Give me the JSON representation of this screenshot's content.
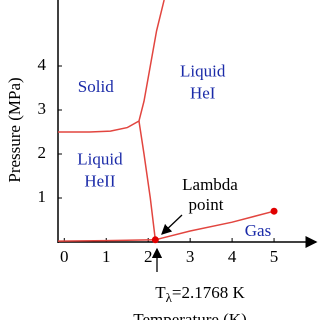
{
  "chart_data": {
    "type": "line",
    "x_label": "Temperature (K)",
    "y_label": "Pressure (MPa)",
    "xlim": [
      -0.15,
      6
    ],
    "ylim": [
      0,
      5.5
    ],
    "xticks": [
      0,
      1,
      2,
      3,
      4,
      5
    ],
    "yticks": [
      1,
      2,
      3,
      4
    ],
    "series": [
      {
        "color": "#e2453f",
        "x": [
          -0.15,
          0.6,
          1.1,
          1.5,
          1.78,
          1.9,
          2.05,
          2.2,
          2.38
        ],
        "values": [
          2.5,
          2.5,
          2.52,
          2.6,
          2.75,
          3.2,
          4.0,
          4.8,
          5.5
        ]
      },
      {
        "color": "#e2453f",
        "x": [
          1.78,
          1.9,
          2.05,
          2.17
        ],
        "values": [
          2.75,
          2.0,
          1.0,
          0.05
        ]
      },
      {
        "color": "#e2453f",
        "x": [
          -0.15,
          1,
          2.17,
          3,
          4,
          5
        ],
        "values": [
          0.02,
          0.03,
          0.05,
          0.25,
          0.45,
          0.7
        ]
      }
    ],
    "markers": {
      "color": "#e00000",
      "x": [
        2.17,
        5.0
      ],
      "values": [
        0.05,
        0.7
      ]
    },
    "regions": [
      {
        "lines": [
          "Solid"
        ],
        "x": 0.75,
        "y": 3.5
      },
      {
        "lines": [
          "Liquid",
          "HeI"
        ],
        "x": 3.3,
        "y": 3.6
      },
      {
        "lines": [
          "Liquid",
          "HeII"
        ],
        "x": 0.85,
        "y": 1.6
      }
    ],
    "gas_label": "Gas",
    "lambda_label": [
      "Lambda",
      "point"
    ],
    "annotation": {
      "base": "T",
      "sub": "λ",
      "rest": "=2.1768 K"
    }
  }
}
